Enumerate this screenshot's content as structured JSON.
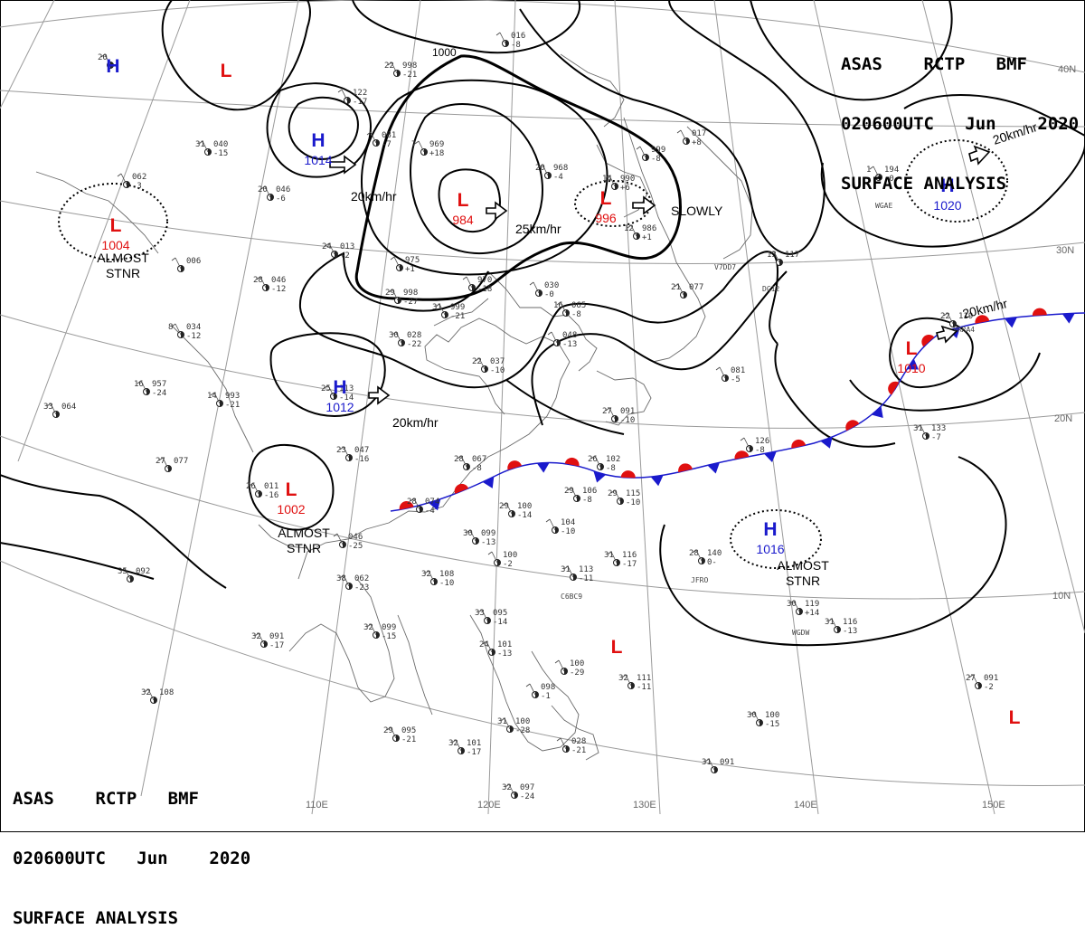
{
  "header": {
    "line1": [
      "ASAS",
      "RCTP",
      "BMF"
    ],
    "line2": [
      "020600UTC",
      "Jun",
      "2020"
    ],
    "line3": "SURFACE ANALYSIS"
  },
  "lon_labels": [
    "110E",
    "120E",
    "130E",
    "140E",
    "150E"
  ],
  "lat_labels": [
    "40N",
    "30N",
    "20N",
    "10N"
  ],
  "isobar_label": "1000",
  "pressure_centers": [
    {
      "type": "H",
      "value": "",
      "color": "#1a1acc"
    },
    {
      "type": "L",
      "value": "",
      "color": "#e01010"
    },
    {
      "type": "H",
      "value": "1014",
      "color": "#1a1acc"
    },
    {
      "type": "L",
      "value": "1004",
      "color": "#e01010"
    },
    {
      "type": "L",
      "value": "984",
      "color": "#e01010"
    },
    {
      "type": "L",
      "value": "996",
      "color": "#e01010"
    },
    {
      "type": "H",
      "value": "1020",
      "color": "#1a1acc"
    },
    {
      "type": "H",
      "value": "1012",
      "color": "#1a1acc"
    },
    {
      "type": "L",
      "value": "1010",
      "color": "#e01010"
    },
    {
      "type": "L",
      "value": "1002",
      "color": "#e01010"
    },
    {
      "type": "H",
      "value": "1016",
      "color": "#1a1acc"
    },
    {
      "type": "L",
      "value": "",
      "color": "#e01010"
    },
    {
      "type": "L",
      "value": "",
      "color": "#e01010"
    }
  ],
  "motion_labels": [
    "20km/hr",
    "25km/hr",
    "SLOWLY",
    "20km/hr",
    "20km/hr",
    "20km/hr"
  ],
  "stationary_labels": [
    [
      "ALMOST",
      "STNR"
    ],
    [
      "ALMOST",
      "STNR"
    ],
    [
      "ALMOST",
      "STNR"
    ]
  ],
  "ship_ids": [
    "WGAE",
    "V7DD7",
    "DG12",
    "VRRA4",
    "C6BC9",
    "JFRO",
    "WGDW"
  ],
  "stations": [
    {
      "t": "20",
      "p": "",
      "d": ""
    },
    {
      "t": "22",
      "p": "998",
      "d": "-21"
    },
    {
      "t": "",
      "p": "016",
      "d": "-8"
    },
    {
      "t": "",
      "p": "122",
      "d": "-17"
    },
    {
      "t": "",
      "p": "081",
      "d": "-7"
    },
    {
      "t": "7",
      "p": "969",
      "d": "+18"
    },
    {
      "t": "31",
      "p": "040",
      "d": "-15"
    },
    {
      "t": "",
      "p": "062",
      "d": "-3"
    },
    {
      "t": "20",
      "p": "046",
      "d": "-6"
    },
    {
      "t": "20",
      "p": "968",
      "d": "-4"
    },
    {
      "t": "",
      "p": "999",
      "d": "-8"
    },
    {
      "t": "",
      "p": "017",
      "d": "+8"
    },
    {
      "t": "1",
      "p": "194",
      "d": "-0"
    },
    {
      "t": "24",
      "p": "013",
      "d": "+2"
    },
    {
      "t": "",
      "p": "975",
      "d": "+1"
    },
    {
      "t": "",
      "p": "006",
      "d": ""
    },
    {
      "t": "14",
      "p": "990",
      "d": "+6"
    },
    {
      "t": "12",
      "p": "986",
      "d": "+1"
    },
    {
      "t": "13",
      "p": "117",
      "d": ""
    },
    {
      "t": "28",
      "p": "046",
      "d": "-12"
    },
    {
      "t": "",
      "p": "970",
      "d": "-18"
    },
    {
      "t": "29",
      "p": "998",
      "d": "-27"
    },
    {
      "t": "31",
      "p": "999",
      "d": "-21"
    },
    {
      "t": "",
      "p": "030",
      "d": "-0"
    },
    {
      "t": "21",
      "p": "077",
      "d": ""
    },
    {
      "t": "16",
      "p": "065",
      "d": "-8"
    },
    {
      "t": "8",
      "p": "034",
      "d": "-12"
    },
    {
      "t": "30",
      "p": "028",
      "d": "-22"
    },
    {
      "t": "",
      "p": "048",
      "d": "-13"
    },
    {
      "t": "22",
      "p": "037",
      "d": "-10"
    },
    {
      "t": "",
      "p": "081",
      "d": "-5"
    },
    {
      "t": "16",
      "p": "957",
      "d": "-24"
    },
    {
      "t": "14",
      "p": "993",
      "d": "-21"
    },
    {
      "t": "25",
      "p": "113",
      "d": "-14"
    },
    {
      "t": "27",
      "p": "091",
      "d": "-10"
    },
    {
      "t": "33",
      "p": "064",
      "d": ""
    },
    {
      "t": "22",
      "p": "119",
      "d": ""
    },
    {
      "t": "23",
      "p": "047",
      "d": "-16"
    },
    {
      "t": "28",
      "p": "067",
      "d": "-8"
    },
    {
      "t": "26",
      "p": "102",
      "d": "-8"
    },
    {
      "t": "",
      "p": "126",
      "d": "-8"
    },
    {
      "t": "31",
      "p": "133",
      "d": "-7"
    },
    {
      "t": "27",
      "p": "077",
      "d": ""
    },
    {
      "t": "26",
      "p": "011",
      "d": "-16"
    },
    {
      "t": "29",
      "p": "106",
      "d": "-8"
    },
    {
      "t": "29",
      "p": "115",
      "d": "-10"
    },
    {
      "t": "28",
      "p": "074",
      "d": "-4"
    },
    {
      "t": "29",
      "p": "100",
      "d": "-14"
    },
    {
      "t": "30",
      "p": "099",
      "d": "-13"
    },
    {
      "t": "",
      "p": "104",
      "d": "-10"
    },
    {
      "t": "",
      "p": "046",
      "d": "-25"
    },
    {
      "t": "",
      "p": "100",
      "d": "-2"
    },
    {
      "t": "31",
      "p": "113",
      "d": "-11"
    },
    {
      "t": "31",
      "p": "116",
      "d": "-17"
    },
    {
      "t": "28",
      "p": "140",
      "d": "0-"
    },
    {
      "t": "35",
      "p": "092",
      "d": ""
    },
    {
      "t": "38",
      "p": "062",
      "d": "-23"
    },
    {
      "t": "32",
      "p": "108",
      "d": "-10"
    },
    {
      "t": "30",
      "p": "119",
      "d": "+14"
    },
    {
      "t": "33",
      "p": "095",
      "d": "-14"
    },
    {
      "t": "32",
      "p": "099",
      "d": "-15"
    },
    {
      "t": "32",
      "p": "091",
      "d": "-17"
    },
    {
      "t": "24",
      "p": "101",
      "d": "-13"
    },
    {
      "t": "31",
      "p": "116",
      "d": "-13"
    },
    {
      "t": "",
      "p": "100",
      "d": "-29"
    },
    {
      "t": "",
      "p": "098",
      "d": "-1"
    },
    {
      "t": "32",
      "p": "111",
      "d": "-11"
    },
    {
      "t": "32",
      "p": "108",
      "d": ""
    },
    {
      "t": "27",
      "p": "091",
      "d": "-2"
    },
    {
      "t": "31",
      "p": "100",
      "d": "-28"
    },
    {
      "t": "30",
      "p": "100",
      "d": "-15"
    },
    {
      "t": "29",
      "p": "095",
      "d": "-21"
    },
    {
      "t": "32",
      "p": "101",
      "d": "-17"
    },
    {
      "t": "",
      "p": "028",
      "d": "-21"
    },
    {
      "t": "31",
      "p": "091",
      "d": ""
    },
    {
      "t": "32",
      "p": "097",
      "d": "-24"
    }
  ],
  "colors": {
    "high": "#1a1acc",
    "low": "#e01010",
    "warm_front": "#e01010",
    "cold_front": "#1a1acc",
    "isobar": "#000000",
    "grid": "#9a9a9a",
    "coast": "#6a6a6a"
  }
}
